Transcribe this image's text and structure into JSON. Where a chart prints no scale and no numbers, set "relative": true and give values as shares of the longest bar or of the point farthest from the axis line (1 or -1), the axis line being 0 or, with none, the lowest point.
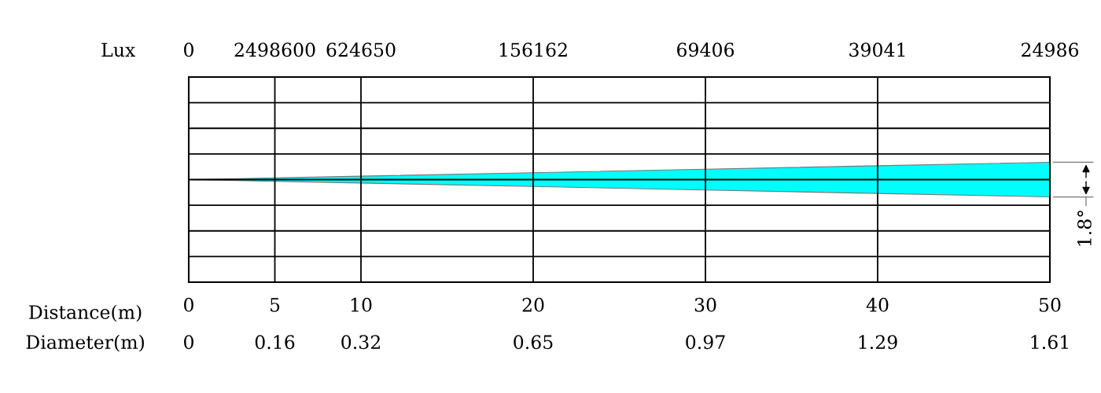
{
  "chart_data": {
    "type": "area",
    "relative": true,
    "x": [
      0,
      5,
      10,
      20,
      30,
      40,
      50
    ],
    "series": [
      {
        "color": "#00ffff",
        "values": [
          0,
          0.1,
          0.2,
          0.4,
          0.6,
          0.8,
          1
        ]
      },
      {
        "color": "#00fefe",
        "values": [
          0,
          -0.1,
          -0.2,
          -0.4,
          -0.6,
          -0.8,
          -1
        ]
      }
    ],
    "xlim": [
      0,
      50
    ],
    "xticks": [
      0,
      5,
      10,
      20,
      30,
      40,
      50
    ],
    "xlabel": "Distance(m)",
    "annotations": [
      "Lux",
      "0",
      "2498600",
      "624650",
      "156162",
      "69406",
      "39041",
      "24986",
      "Diameter(m)",
      "0",
      "0.16",
      "0.32",
      "0.65",
      "0.97",
      "1.29",
      "1.61",
      "1.8°"
    ],
    "grid": true
  }
}
